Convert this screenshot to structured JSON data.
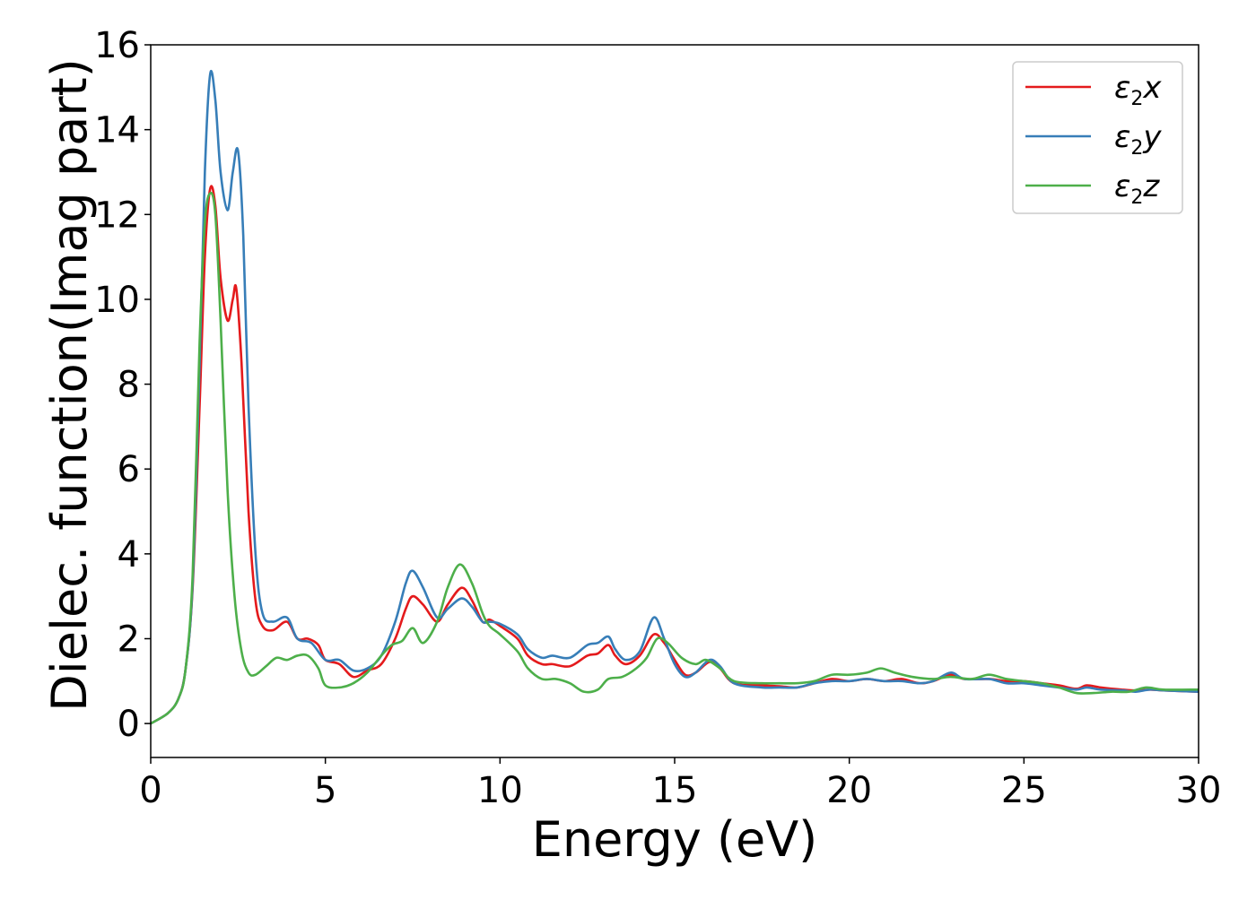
{
  "chart_data": {
    "type": "line",
    "title": "",
    "xlabel": "Energy (eV)",
    "ylabel": "Dielec. function(Imag part)",
    "xlim": [
      0,
      30
    ],
    "ylim": [
      -0.8,
      16
    ],
    "xticks": [
      0,
      5,
      10,
      15,
      20,
      25,
      30
    ],
    "yticks": [
      0,
      2,
      4,
      6,
      8,
      10,
      12,
      14,
      16
    ],
    "grid": false,
    "legend_position": "top-right",
    "series": [
      {
        "name": "ε2x",
        "legend": {
          "base": "ε",
          "sub": "2",
          "var": "x"
        },
        "color": "#e41a1c",
        "points": [
          [
            0,
            0
          ],
          [
            0.5,
            0.25
          ],
          [
            0.8,
            0.6
          ],
          [
            1.0,
            1.3
          ],
          [
            1.2,
            3.2
          ],
          [
            1.4,
            7.5
          ],
          [
            1.55,
            11.0
          ],
          [
            1.7,
            12.6
          ],
          [
            1.85,
            12.2
          ],
          [
            2.0,
            10.5
          ],
          [
            2.2,
            9.5
          ],
          [
            2.35,
            10.0
          ],
          [
            2.45,
            10.25
          ],
          [
            2.6,
            8.5
          ],
          [
            2.8,
            5.0
          ],
          [
            3.0,
            2.9
          ],
          [
            3.2,
            2.3
          ],
          [
            3.5,
            2.2
          ],
          [
            3.9,
            2.4
          ],
          [
            4.2,
            2.0
          ],
          [
            4.5,
            2.0
          ],
          [
            4.8,
            1.85
          ],
          [
            5.0,
            1.5
          ],
          [
            5.4,
            1.4
          ],
          [
            5.8,
            1.1
          ],
          [
            6.2,
            1.25
          ],
          [
            6.6,
            1.4
          ],
          [
            7.0,
            2.0
          ],
          [
            7.3,
            2.7
          ],
          [
            7.5,
            3.0
          ],
          [
            7.8,
            2.8
          ],
          [
            8.2,
            2.4
          ],
          [
            8.5,
            2.8
          ],
          [
            8.9,
            3.2
          ],
          [
            9.2,
            2.9
          ],
          [
            9.5,
            2.4
          ],
          [
            9.7,
            2.45
          ],
          [
            10.0,
            2.3
          ],
          [
            10.5,
            2.0
          ],
          [
            10.8,
            1.6
          ],
          [
            11.2,
            1.4
          ],
          [
            11.5,
            1.4
          ],
          [
            12.0,
            1.35
          ],
          [
            12.5,
            1.6
          ],
          [
            12.8,
            1.65
          ],
          [
            13.1,
            1.85
          ],
          [
            13.3,
            1.6
          ],
          [
            13.6,
            1.4
          ],
          [
            14.0,
            1.6
          ],
          [
            14.4,
            2.1
          ],
          [
            14.7,
            1.9
          ],
          [
            15.0,
            1.5
          ],
          [
            15.3,
            1.15
          ],
          [
            15.6,
            1.2
          ],
          [
            16.0,
            1.45
          ],
          [
            16.3,
            1.3
          ],
          [
            16.7,
            0.95
          ],
          [
            17.5,
            0.9
          ],
          [
            18.0,
            0.88
          ],
          [
            18.5,
            0.85
          ],
          [
            19.0,
            0.95
          ],
          [
            19.5,
            1.05
          ],
          [
            20.0,
            1.0
          ],
          [
            20.5,
            1.05
          ],
          [
            21.0,
            1.0
          ],
          [
            21.5,
            1.05
          ],
          [
            22.0,
            0.95
          ],
          [
            22.4,
            1.0
          ],
          [
            22.9,
            1.15
          ],
          [
            23.3,
            1.05
          ],
          [
            24.0,
            1.05
          ],
          [
            24.5,
            1.0
          ],
          [
            25.0,
            1.0
          ],
          [
            25.5,
            0.95
          ],
          [
            26.0,
            0.9
          ],
          [
            26.5,
            0.82
          ],
          [
            26.8,
            0.9
          ],
          [
            27.2,
            0.85
          ],
          [
            27.8,
            0.8
          ],
          [
            28.2,
            0.78
          ],
          [
            28.6,
            0.8
          ],
          [
            29.0,
            0.78
          ],
          [
            30,
            0.75
          ]
        ]
      },
      {
        "name": "ε2y",
        "legend": {
          "base": "ε",
          "sub": "2",
          "var": "y"
        },
        "color": "#377eb8",
        "points": [
          [
            0,
            0
          ],
          [
            0.5,
            0.25
          ],
          [
            0.8,
            0.6
          ],
          [
            1.0,
            1.3
          ],
          [
            1.2,
            3.3
          ],
          [
            1.4,
            8.5
          ],
          [
            1.55,
            13.0
          ],
          [
            1.7,
            15.3
          ],
          [
            1.85,
            14.7
          ],
          [
            2.0,
            13.0
          ],
          [
            2.2,
            12.1
          ],
          [
            2.35,
            13.0
          ],
          [
            2.5,
            13.5
          ],
          [
            2.65,
            11.5
          ],
          [
            2.8,
            7.5
          ],
          [
            3.0,
            4.0
          ],
          [
            3.2,
            2.6
          ],
          [
            3.5,
            2.4
          ],
          [
            3.9,
            2.5
          ],
          [
            4.2,
            2.0
          ],
          [
            4.6,
            1.9
          ],
          [
            5.0,
            1.5
          ],
          [
            5.4,
            1.5
          ],
          [
            5.8,
            1.25
          ],
          [
            6.2,
            1.3
          ],
          [
            6.6,
            1.6
          ],
          [
            7.0,
            2.4
          ],
          [
            7.3,
            3.3
          ],
          [
            7.5,
            3.6
          ],
          [
            7.8,
            3.2
          ],
          [
            8.2,
            2.5
          ],
          [
            8.5,
            2.7
          ],
          [
            8.9,
            2.95
          ],
          [
            9.2,
            2.75
          ],
          [
            9.5,
            2.4
          ],
          [
            9.7,
            2.4
          ],
          [
            10.0,
            2.35
          ],
          [
            10.5,
            2.1
          ],
          [
            10.8,
            1.75
          ],
          [
            11.2,
            1.55
          ],
          [
            11.5,
            1.6
          ],
          [
            12.0,
            1.55
          ],
          [
            12.5,
            1.85
          ],
          [
            12.8,
            1.9
          ],
          [
            13.1,
            2.05
          ],
          [
            13.3,
            1.75
          ],
          [
            13.6,
            1.5
          ],
          [
            14.0,
            1.7
          ],
          [
            14.4,
            2.5
          ],
          [
            14.7,
            2.0
          ],
          [
            15.0,
            1.4
          ],
          [
            15.3,
            1.1
          ],
          [
            15.6,
            1.2
          ],
          [
            16.0,
            1.5
          ],
          [
            16.3,
            1.35
          ],
          [
            16.7,
            0.95
          ],
          [
            17.5,
            0.85
          ],
          [
            18.0,
            0.85
          ],
          [
            18.5,
            0.85
          ],
          [
            19.0,
            0.95
          ],
          [
            19.5,
            1.0
          ],
          [
            20.0,
            1.0
          ],
          [
            20.5,
            1.05
          ],
          [
            21.0,
            1.0
          ],
          [
            21.5,
            1.0
          ],
          [
            22.0,
            0.95
          ],
          [
            22.4,
            1.0
          ],
          [
            22.9,
            1.2
          ],
          [
            23.3,
            1.05
          ],
          [
            24.0,
            1.05
          ],
          [
            24.5,
            0.95
          ],
          [
            25.0,
            0.95
          ],
          [
            25.5,
            0.9
          ],
          [
            26.0,
            0.85
          ],
          [
            26.5,
            0.8
          ],
          [
            26.8,
            0.85
          ],
          [
            27.2,
            0.8
          ],
          [
            27.8,
            0.78
          ],
          [
            28.2,
            0.75
          ],
          [
            28.6,
            0.8
          ],
          [
            29.0,
            0.78
          ],
          [
            30,
            0.75
          ]
        ]
      },
      {
        "name": "ε2z",
        "legend": {
          "base": "ε",
          "sub": "2",
          "var": "z"
        },
        "color": "#4daf4a",
        "points": [
          [
            0,
            0
          ],
          [
            0.5,
            0.25
          ],
          [
            0.8,
            0.6
          ],
          [
            1.0,
            1.3
          ],
          [
            1.2,
            3.5
          ],
          [
            1.4,
            9.0
          ],
          [
            1.55,
            11.8
          ],
          [
            1.7,
            12.5
          ],
          [
            1.85,
            12.0
          ],
          [
            2.0,
            9.5
          ],
          [
            2.2,
            5.5
          ],
          [
            2.4,
            3.0
          ],
          [
            2.6,
            1.7
          ],
          [
            2.8,
            1.2
          ],
          [
            3.0,
            1.15
          ],
          [
            3.3,
            1.35
          ],
          [
            3.6,
            1.55
          ],
          [
            3.9,
            1.5
          ],
          [
            4.2,
            1.6
          ],
          [
            4.5,
            1.6
          ],
          [
            4.8,
            1.3
          ],
          [
            5.0,
            0.9
          ],
          [
            5.4,
            0.85
          ],
          [
            5.8,
            0.95
          ],
          [
            6.2,
            1.2
          ],
          [
            6.6,
            1.6
          ],
          [
            6.9,
            1.85
          ],
          [
            7.2,
            1.95
          ],
          [
            7.5,
            2.25
          ],
          [
            7.8,
            1.9
          ],
          [
            8.2,
            2.4
          ],
          [
            8.5,
            3.2
          ],
          [
            8.85,
            3.75
          ],
          [
            9.2,
            3.3
          ],
          [
            9.5,
            2.6
          ],
          [
            9.7,
            2.3
          ],
          [
            10.0,
            2.1
          ],
          [
            10.5,
            1.7
          ],
          [
            10.8,
            1.3
          ],
          [
            11.2,
            1.05
          ],
          [
            11.6,
            1.05
          ],
          [
            12.0,
            0.95
          ],
          [
            12.4,
            0.75
          ],
          [
            12.8,
            0.8
          ],
          [
            13.1,
            1.05
          ],
          [
            13.5,
            1.1
          ],
          [
            13.9,
            1.3
          ],
          [
            14.2,
            1.55
          ],
          [
            14.5,
            2.0
          ],
          [
            14.8,
            1.9
          ],
          [
            15.2,
            1.55
          ],
          [
            15.6,
            1.4
          ],
          [
            15.9,
            1.5
          ],
          [
            16.3,
            1.3
          ],
          [
            16.7,
            1.0
          ],
          [
            17.5,
            0.95
          ],
          [
            18.0,
            0.95
          ],
          [
            18.5,
            0.95
          ],
          [
            19.0,
            1.0
          ],
          [
            19.5,
            1.15
          ],
          [
            20.0,
            1.15
          ],
          [
            20.5,
            1.2
          ],
          [
            20.9,
            1.3
          ],
          [
            21.3,
            1.2
          ],
          [
            21.8,
            1.1
          ],
          [
            22.4,
            1.05
          ],
          [
            22.9,
            1.1
          ],
          [
            23.5,
            1.05
          ],
          [
            24.0,
            1.15
          ],
          [
            24.5,
            1.05
          ],
          [
            25.0,
            1.0
          ],
          [
            25.5,
            0.95
          ],
          [
            26.0,
            0.85
          ],
          [
            26.5,
            0.72
          ],
          [
            27.0,
            0.72
          ],
          [
            27.5,
            0.75
          ],
          [
            28.0,
            0.75
          ],
          [
            28.5,
            0.85
          ],
          [
            29.0,
            0.8
          ],
          [
            30,
            0.8
          ]
        ]
      }
    ]
  }
}
